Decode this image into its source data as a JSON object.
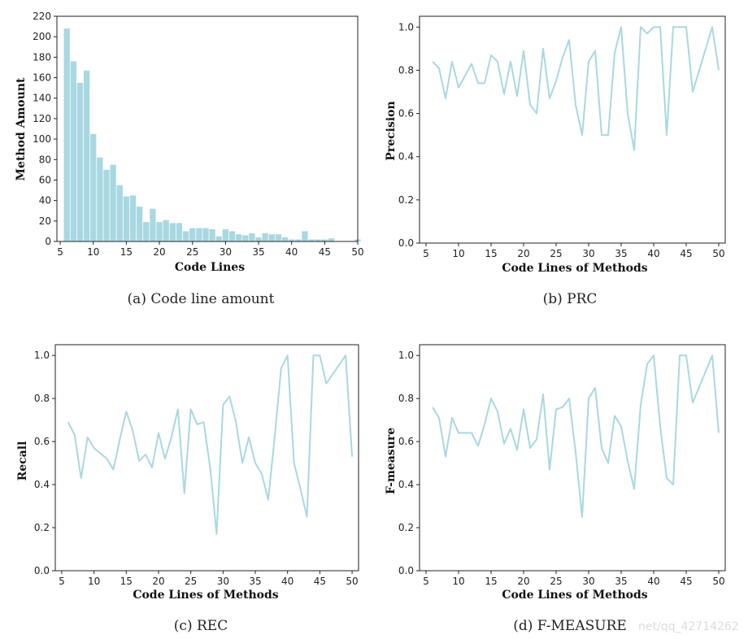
{
  "colors": {
    "series": "#a8d8e2",
    "axis": "#222222"
  },
  "watermark": "net/qq_42714262",
  "chart_data": [
    {
      "id": "a",
      "type": "bar",
      "caption": "(a) Code line amount",
      "xlabel": "Code Lines",
      "ylabel": "Method Amount",
      "xlim": [
        4.5,
        50
      ],
      "ylim": [
        0,
        220
      ],
      "xticks": [
        5,
        10,
        15,
        20,
        25,
        30,
        35,
        40,
        45,
        50
      ],
      "yticks": [
        0,
        20,
        40,
        60,
        80,
        100,
        120,
        140,
        160,
        180,
        200,
        220
      ],
      "x": [
        6,
        7,
        8,
        9,
        10,
        11,
        12,
        13,
        14,
        15,
        16,
        17,
        18,
        19,
        20,
        21,
        22,
        23,
        24,
        25,
        26,
        27,
        28,
        29,
        30,
        31,
        32,
        33,
        34,
        35,
        36,
        37,
        38,
        39,
        40,
        41,
        42,
        43,
        44,
        45,
        46,
        47,
        48,
        49,
        50
      ],
      "values": [
        208,
        176,
        155,
        167,
        105,
        82,
        70,
        75,
        55,
        44,
        45,
        34,
        19,
        32,
        19,
        21,
        18,
        18,
        10,
        13,
        13,
        13,
        12,
        5,
        12,
        10,
        7,
        6,
        8,
        4,
        8,
        7,
        7,
        4,
        2,
        2,
        10,
        2,
        2,
        2,
        3,
        0,
        0,
        0,
        2
      ]
    },
    {
      "id": "b",
      "type": "line",
      "caption": "(b) PRC",
      "xlabel": "Code Lines of Methods",
      "ylabel": "Precision",
      "xlim": [
        4,
        51
      ],
      "ylim": [
        0,
        1.05
      ],
      "xticks": [
        5,
        10,
        15,
        20,
        25,
        30,
        35,
        40,
        45,
        50
      ],
      "yticks": [
        0.0,
        0.2,
        0.4,
        0.6,
        0.8,
        1.0
      ],
      "ytick_labels": [
        "0.0",
        "0.2",
        "0.4",
        "0.6",
        "0.8",
        "1.0"
      ],
      "x": [
        6,
        7,
        8,
        9,
        10,
        12,
        13,
        14,
        15,
        16,
        17,
        18,
        19,
        20,
        21,
        22,
        23,
        24,
        25,
        26,
        27,
        28,
        29,
        30,
        31,
        32,
        33,
        34,
        35,
        36,
        37,
        38,
        39,
        40,
        41,
        42,
        43,
        44,
        45,
        46,
        49,
        50
      ],
      "y": [
        0.84,
        0.81,
        0.67,
        0.84,
        0.72,
        0.83,
        0.74,
        0.74,
        0.87,
        0.84,
        0.69,
        0.84,
        0.68,
        0.89,
        0.64,
        0.6,
        0.9,
        0.67,
        0.75,
        0.86,
        0.94,
        0.64,
        0.5,
        0.84,
        0.89,
        0.5,
        0.5,
        0.88,
        1.0,
        0.6,
        0.43,
        1.0,
        0.97,
        1.0,
        1.0,
        0.5,
        1.0,
        1.0,
        1.0,
        0.7,
        1.0,
        0.8
      ]
    },
    {
      "id": "c",
      "type": "line",
      "caption": "(c) REC",
      "xlabel": "Code Lines of Methods",
      "ylabel": "Recall",
      "xlim": [
        4,
        51
      ],
      "ylim": [
        0,
        1.05
      ],
      "xticks": [
        5,
        10,
        15,
        20,
        25,
        30,
        35,
        40,
        45,
        50
      ],
      "yticks": [
        0.0,
        0.2,
        0.4,
        0.6,
        0.8,
        1.0
      ],
      "ytick_labels": [
        "0.0",
        "0.2",
        "0.4",
        "0.6",
        "0.8",
        "1.0"
      ],
      "x": [
        6,
        7,
        8,
        9,
        10,
        12,
        13,
        14,
        15,
        16,
        17,
        18,
        19,
        20,
        21,
        22,
        23,
        24,
        25,
        26,
        27,
        28,
        29,
        30,
        31,
        32,
        33,
        34,
        35,
        36,
        37,
        38,
        39,
        40,
        41,
        42,
        43,
        44,
        45,
        46,
        49,
        50
      ],
      "y": [
        0.69,
        0.63,
        0.43,
        0.62,
        0.57,
        0.52,
        0.47,
        0.61,
        0.74,
        0.65,
        0.51,
        0.54,
        0.48,
        0.64,
        0.52,
        0.62,
        0.75,
        0.36,
        0.75,
        0.68,
        0.69,
        0.48,
        0.17,
        0.77,
        0.81,
        0.69,
        0.5,
        0.62,
        0.5,
        0.45,
        0.33,
        0.62,
        0.94,
        1.0,
        0.5,
        0.38,
        0.25,
        1.0,
        1.0,
        0.87,
        1.0,
        0.53
      ]
    },
    {
      "id": "d",
      "type": "line",
      "caption": "(d) F-MEASURE",
      "xlabel": "Code Lines of Methods",
      "ylabel": "F-measure",
      "xlim": [
        4,
        51
      ],
      "ylim": [
        0,
        1.05
      ],
      "xticks": [
        5,
        10,
        15,
        20,
        25,
        30,
        35,
        40,
        45,
        50
      ],
      "yticks": [
        0.0,
        0.2,
        0.4,
        0.6,
        0.8,
        1.0
      ],
      "ytick_labels": [
        "0.0",
        "0.2",
        "0.4",
        "0.6",
        "0.8",
        "1.0"
      ],
      "x": [
        6,
        7,
        8,
        9,
        10,
        12,
        13,
        14,
        15,
        16,
        17,
        18,
        19,
        20,
        21,
        22,
        23,
        24,
        25,
        26,
        27,
        28,
        29,
        30,
        31,
        32,
        33,
        34,
        35,
        36,
        37,
        38,
        39,
        40,
        41,
        42,
        43,
        44,
        45,
        46,
        49,
        50
      ],
      "y": [
        0.76,
        0.71,
        0.53,
        0.71,
        0.64,
        0.64,
        0.58,
        0.68,
        0.8,
        0.74,
        0.59,
        0.66,
        0.56,
        0.75,
        0.57,
        0.61,
        0.82,
        0.47,
        0.75,
        0.76,
        0.8,
        0.55,
        0.25,
        0.8,
        0.85,
        0.57,
        0.5,
        0.72,
        0.67,
        0.51,
        0.38,
        0.77,
        0.96,
        1.0,
        0.67,
        0.43,
        0.4,
        1.0,
        1.0,
        0.78,
        1.0,
        0.64
      ]
    }
  ]
}
